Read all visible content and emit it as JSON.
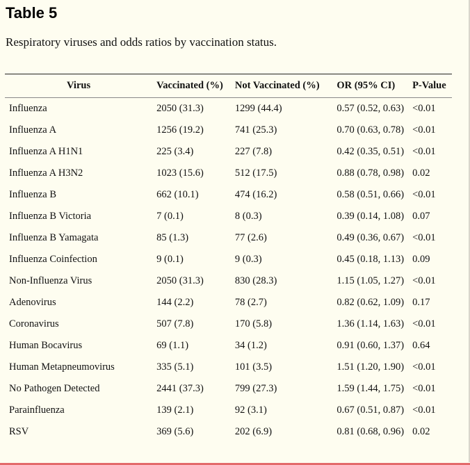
{
  "title": "Table 5",
  "caption": "Respiratory viruses and odds ratios by vaccination status.",
  "table": {
    "headers": [
      "Virus",
      "Vaccinated (%)",
      "Not Vaccinated (%)",
      "OR (95% CI)",
      "P-Value"
    ],
    "rows": [
      [
        "Influenza",
        "2050 (31.3)",
        "1299 (44.4)",
        "0.57 (0.52, 0.63)",
        "<0.01"
      ],
      [
        "Influenza A",
        "1256 (19.2)",
        "741 (25.3)",
        "0.70 (0.63, 0.78)",
        "<0.01"
      ],
      [
        "Influenza A H1N1",
        "225 (3.4)",
        "227 (7.8)",
        "0.42 (0.35, 0.51)",
        "<0.01"
      ],
      [
        "Influenza A H3N2",
        "1023 (15.6)",
        "512 (17.5)",
        "0.88 (0.78, 0.98)",
        "0.02"
      ],
      [
        "Influenza B",
        "662 (10.1)",
        "474 (16.2)",
        "0.58 (0.51, 0.66)",
        "<0.01"
      ],
      [
        "Influenza B Victoria",
        "7 (0.1)",
        "8 (0.3)",
        "0.39 (0.14, 1.08)",
        "0.07"
      ],
      [
        "Influenza B Yamagata",
        "85 (1.3)",
        "77 (2.6)",
        "0.49 (0.36, 0.67)",
        "<0.01"
      ],
      [
        "Influenza Coinfection",
        "9 (0.1)",
        "9 (0.3)",
        "0.45 (0.18, 1.13)",
        "0.09"
      ],
      [
        "Non-Influenza Virus",
        "2050 (31.3)",
        "830 (28.3)",
        "1.15 (1.05, 1.27)",
        "<0.01"
      ],
      [
        "Adenovirus",
        "144 (2.2)",
        "78 (2.7)",
        "0.82 (0.62, 1.09)",
        "0.17"
      ],
      [
        "Coronavirus",
        "507 (7.8)",
        "170 (5.8)",
        "1.36 (1.14, 1.63)",
        "<0.01"
      ],
      [
        "Human Bocavirus",
        "69 (1.1)",
        "34 (1.2)",
        "0.91 (0.60, 1.37)",
        "0.64"
      ],
      [
        "Human Metapneumovirus",
        "335 (5.1)",
        "101 (3.5)",
        "1.51 (1.20, 1.90)",
        "<0.01"
      ],
      [
        "No Pathogen Detected",
        "2441 (37.3)",
        "799 (27.3)",
        "1.59 (1.44, 1.75)",
        "<0.01"
      ],
      [
        "Parainfluenza",
        "139 (2.1)",
        "92 (3.1)",
        "0.67 (0.51, 0.87)",
        "<0.01"
      ],
      [
        "RSV",
        "369 (5.6)",
        "202 (6.9)",
        "0.81 (0.68, 0.96)",
        "0.02"
      ]
    ]
  },
  "colors": {
    "background": "#fefdf0",
    "bottom_rule": "#e36a6a"
  }
}
